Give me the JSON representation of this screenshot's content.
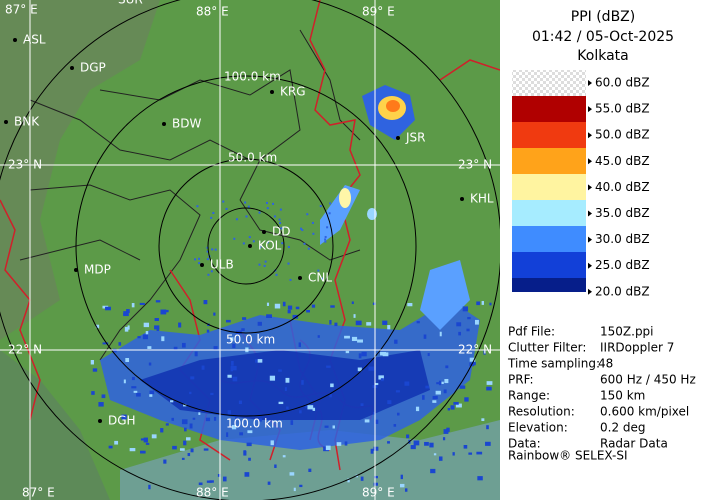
{
  "header": {
    "title": "PPI (dBZ)",
    "time": "01:42 / 05-Oct-2025",
    "site": "Kolkata"
  },
  "map": {
    "grid_labels": [
      "87° E",
      "88° E",
      "89° E",
      "23° N",
      "23° N",
      "22° N",
      "22° N",
      "87° E",
      "88° E",
      "89° E",
      "SUR"
    ],
    "range_labels": [
      "50.0 km",
      "100.0 km",
      "50.0 km",
      "100.0 km"
    ],
    "places": [
      "ASL",
      "DGP",
      "BNK",
      "BDW",
      "KRG",
      "JSR",
      "KHL",
      "DD",
      "KOL",
      "ULB",
      "CNL",
      "MDP",
      "DGH"
    ]
  },
  "legend": {
    "labels": [
      "60.0 dBZ",
      "55.0 dBZ",
      "50.0 dBZ",
      "45.0 dBZ",
      "40.0 dBZ",
      "35.0 dBZ",
      "30.0 dBZ",
      "25.0 dBZ",
      "20.0 dBZ"
    ]
  },
  "info": {
    "rows": [
      [
        "Pdf File:",
        "150Z.ppi"
      ],
      [
        "Clutter Filter:",
        "IIRDoppler 7"
      ],
      [
        "Time sampling:",
        "48"
      ],
      [
        "PRF:",
        "600 Hz / 450 Hz"
      ],
      [
        "Range:",
        "150 km"
      ],
      [
        "Resolution:",
        "0.600 km/pixel"
      ],
      [
        "Elevation:",
        "0.2 deg"
      ],
      [
        "Data:",
        "Radar Data"
      ]
    ],
    "footer": "Rainbow® SELEX-SI"
  }
}
